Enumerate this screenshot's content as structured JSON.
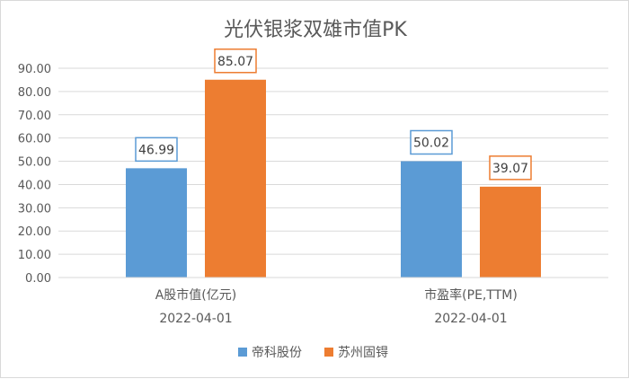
{
  "chart_data": {
    "type": "bar",
    "title": "光伏银浆双雄市值PK",
    "categories": [
      {
        "label": "A股市值(亿元)",
        "sublabel": "2022-04-01"
      },
      {
        "label": "市盈率(PE,TTM)",
        "sublabel": "2022-04-01"
      }
    ],
    "series": [
      {
        "name": "帝科股份",
        "color": "#5b9bd5",
        "values": [
          46.99,
          50.02
        ]
      },
      {
        "name": "苏州固锝",
        "color": "#ed7d31",
        "values": [
          85.07,
          39.07
        ]
      }
    ],
    "data_labels": [
      [
        "46.99",
        "50.02"
      ],
      [
        "85.07",
        "39.07"
      ]
    ],
    "ylim": [
      0,
      90
    ],
    "y_step": 10,
    "y_tick_labels": [
      "0.00",
      "10.00",
      "20.00",
      "30.00",
      "40.00",
      "50.00",
      "60.00",
      "70.00",
      "80.00",
      "90.00"
    ],
    "grid": true,
    "legend_position": "bottom",
    "colors": {
      "grid": "#d9d9d9",
      "axis_text": "#595959",
      "label_text": "#404040"
    }
  }
}
